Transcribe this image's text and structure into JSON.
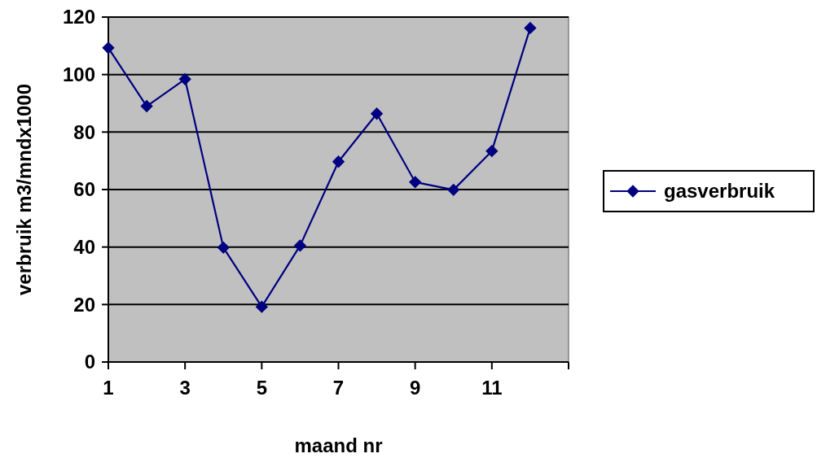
{
  "chart_data": {
    "type": "line",
    "xlabel": "maand nr",
    "ylabel": "verbruik m3/mndx1000",
    "x": [
      1,
      2,
      3,
      4,
      5,
      6,
      7,
      8,
      9,
      10,
      11,
      12
    ],
    "series": [
      {
        "name": "gasverbruik",
        "color": "#000080",
        "values": [
          109.3,
          89,
          98.4,
          39.8,
          19.2,
          40.5,
          69.7,
          86.4,
          62.6,
          59.9,
          73.4,
          116.2
        ]
      }
    ],
    "xlim": [
      1,
      13
    ],
    "xticks": [
      1,
      3,
      5,
      7,
      9,
      11,
      {
        "value": 13,
        "label": null
      }
    ],
    "ylim": [
      0,
      120
    ],
    "yticks": [
      0,
      20,
      40,
      60,
      80,
      100,
      120
    ],
    "grid": "y",
    "legend": "right",
    "marker": "diamond",
    "line_style": "solid"
  }
}
